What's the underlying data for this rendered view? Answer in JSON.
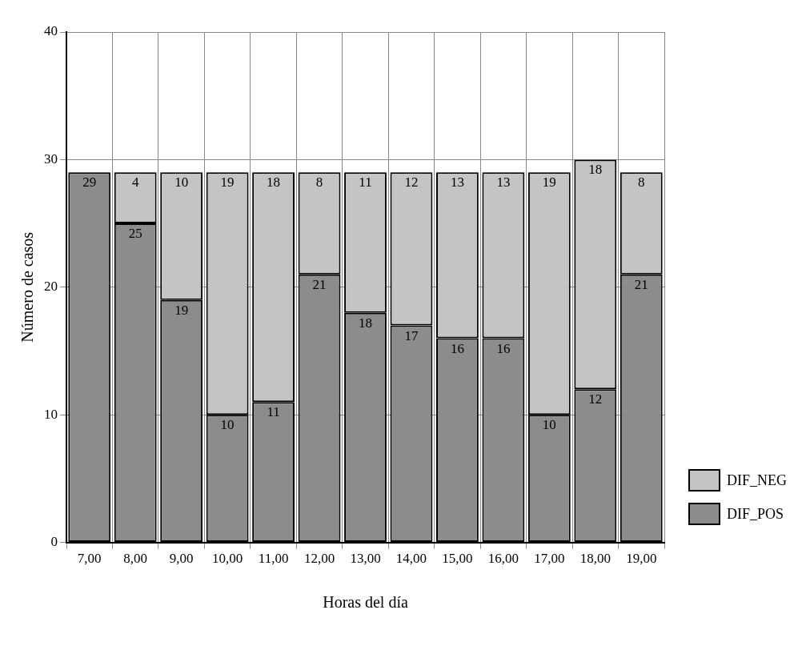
{
  "chart_data": {
    "type": "bar",
    "xlabel": "Horas del día",
    "ylabel": "Número de casos",
    "categories": [
      "7,00",
      "8,00",
      "9,00",
      "10,00",
      "11,00",
      "12,00",
      "13,00",
      "14,00",
      "15,00",
      "16,00",
      "17,00",
      "18,00",
      "19,00"
    ],
    "stacked": true,
    "data_labels": true,
    "legend": "right",
    "grid": true,
    "ylim": [
      0,
      40
    ],
    "yticks": [
      0,
      10,
      20,
      30,
      40
    ],
    "series": [
      {
        "name": "DIF_POS",
        "color": "#8c8c8c",
        "values": [
          29,
          25,
          19,
          10,
          11,
          21,
          18,
          17,
          16,
          16,
          10,
          12,
          21
        ]
      },
      {
        "name": "DIF_NEG",
        "color": "#c4c4c4",
        "values": [
          null,
          4,
          10,
          19,
          18,
          8,
          11,
          12,
          13,
          13,
          19,
          18,
          8
        ]
      }
    ]
  }
}
